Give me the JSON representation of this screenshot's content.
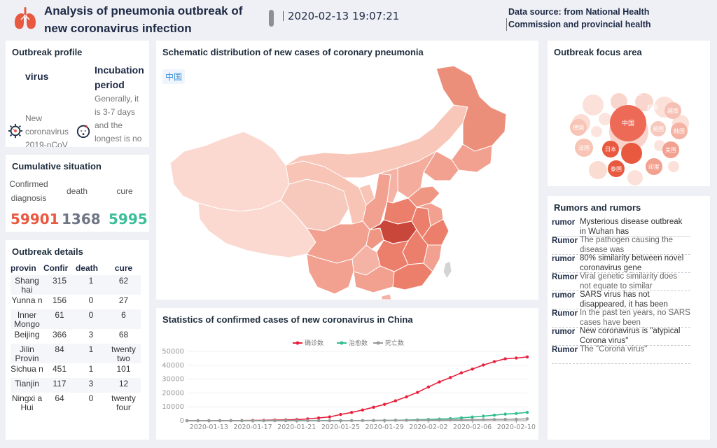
{
  "header": {
    "title": "Analysis of pneumonia outbreak of new coronavirus infection",
    "time": "2020-02-13 19:07:21",
    "source_line1": "Data source: from National Health",
    "source_line2": "Commission and provincial health"
  },
  "profile": {
    "title": "Outbreak profile",
    "virus_header": "virus",
    "virus_name": "New coronavirus 2019-nCoV",
    "incubation_header": "Incubation period",
    "incubation_text": "Generally, it is 3-7 days and the longest is no"
  },
  "cumulative": {
    "title": "Cumulative situation",
    "confirmed_label": "Confirmed diagnosis",
    "death_label": "death",
    "cure_label": "cure",
    "confirmed_value": "59901",
    "death_value": "1368",
    "cure_value": "5995",
    "colors": {
      "confirmed": "#e8593f",
      "death": "#6e7584",
      "cure": "#3cbf98"
    }
  },
  "details": {
    "title": "Outbreak details",
    "headers": [
      "provin",
      "Confir",
      "death",
      "cure"
    ],
    "rows": [
      [
        "Shang hai",
        "315",
        "1",
        "62"
      ],
      [
        "Yunna n",
        "156",
        "0",
        "27"
      ],
      [
        "Inner Mongo",
        "61",
        "0",
        "6"
      ],
      [
        "Beijing",
        "366",
        "3",
        "68"
      ],
      [
        "Jilin Provin",
        "84",
        "1",
        "twenty two"
      ],
      [
        "Sichua n",
        "451",
        "1",
        "101"
      ],
      [
        "Tianjin",
        "117",
        "3",
        "12"
      ],
      [
        "Ningxi a Hui",
        "64",
        "0",
        "twenty four"
      ]
    ]
  },
  "map": {
    "title": "Schematic distribution of new cases of coronary pneumonia",
    "region_tag": "中国",
    "colors": [
      "#fbd9d0",
      "#f7bcae",
      "#f2a08f",
      "#ec7f6b",
      "#c9473a"
    ]
  },
  "focus": {
    "title": "Outbreak focus area",
    "bubbles": [
      "开兰",
      "越南",
      "越南",
      "英国",
      "韩国",
      "德国",
      "中国",
      "美国",
      "法国",
      "日本",
      "泰国",
      "印度"
    ]
  },
  "rumors": {
    "title": "Rumors and rumors",
    "items": [
      {
        "tag": "rumor",
        "text": "Mysterious disease outbreak in Wuhan has"
      },
      {
        "tag": "Rumor",
        "text": "The pathogen causing the disease was"
      },
      {
        "tag": "rumor",
        "text": "80% similarity between novel coronavirus gene"
      },
      {
        "tag": "Rumor",
        "text": "Viral genetic similarity does not equate to similar pathogenicity"
      },
      {
        "tag": "rumor",
        "text": "SARS virus has not disappeared, it has been"
      },
      {
        "tag": "Rumor",
        "text": "In the past ten years, no SARS cases have been"
      },
      {
        "tag": "rumor",
        "text": "New coronavirus is \"atypical Corona virus\""
      },
      {
        "tag": "Rumor",
        "text": "The \"Corona virus\""
      }
    ]
  },
  "stats": {
    "title": "Statistics of confirmed cases of new coronavirus in China"
  },
  "chart_data": {
    "type": "line",
    "title": "Statistics of confirmed cases of new coronavirus in China",
    "x": [
      "2020-01-11",
      "2020-01-12",
      "2020-01-13",
      "2020-01-14",
      "2020-01-15",
      "2020-01-16",
      "2020-01-17",
      "2020-01-18",
      "2020-01-19",
      "2020-01-20",
      "2020-01-21",
      "2020-01-22",
      "2020-01-23",
      "2020-01-24",
      "2020-01-25",
      "2020-01-26",
      "2020-01-27",
      "2020-01-28",
      "2020-01-29",
      "2020-01-30",
      "2020-01-31",
      "2020-02-01",
      "2020-02-02",
      "2020-02-03",
      "2020-02-04",
      "2020-02-05",
      "2020-02-06",
      "2020-02-07",
      "2020-02-08",
      "2020-02-09",
      "2020-02-10",
      "2020-02-11"
    ],
    "x_tick_labels": [
      "2020-01-13",
      "2020-01-17",
      "2020-01-21",
      "2020-01-25",
      "2020-01-29",
      "2020-02-02",
      "2020-02-06",
      "2020-02-10"
    ],
    "ylim": [
      0,
      50000
    ],
    "y_ticks": [
      "0",
      "10000",
      "20000",
      "30000",
      "40000",
      "50000"
    ],
    "legend_position": "top-center",
    "series": [
      {
        "name": "确诊数",
        "color": "#e8213d",
        "values": [
          41,
          41,
          41,
          45,
          62,
          121,
          198,
          291,
          440,
          571,
          830,
          1287,
          1975,
          2744,
          4515,
          5974,
          7711,
          9692,
          11791,
          14380,
          17205,
          20438,
          24324,
          28018,
          31161,
          34546,
          37198,
          40171,
          42638,
          44653,
          45200,
          46000
        ]
      },
      {
        "name": "治愈数",
        "color": "#2fbf8f",
        "values": [
          2,
          6,
          12,
          15,
          19,
          25,
          25,
          25,
          28,
          28,
          34,
          38,
          49,
          51,
          60,
          103,
          124,
          171,
          243,
          328,
          475,
          632,
          892,
          1153,
          1540,
          2050,
          2649,
          3281,
          3996,
          4740,
          5200,
          5995
        ]
      },
      {
        "name": "死亡数",
        "color": "#9a9a9a",
        "values": [
          1,
          1,
          1,
          2,
          2,
          2,
          3,
          4,
          6,
          9,
          17,
          25,
          41,
          56,
          80,
          106,
          132,
          170,
          213,
          259,
          304,
          361,
          425,
          490,
          563,
          636,
          722,
          811,
          908,
          1016,
          1113,
          1368
        ]
      }
    ]
  }
}
